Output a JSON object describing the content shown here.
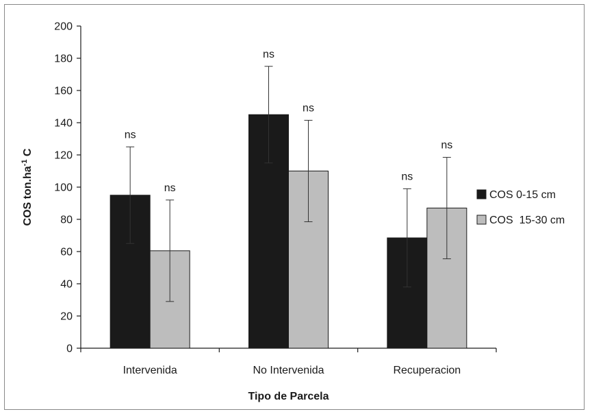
{
  "chart_data": {
    "type": "bar",
    "categories": [
      "Intervenida",
      "No Intervenida",
      "Recuperacion"
    ],
    "series": [
      {
        "name": "COS 0-15 cm",
        "values": [
          95,
          145,
          68.5
        ],
        "error": [
          30,
          30,
          30.5
        ],
        "annotations": [
          "ns",
          "ns",
          "ns"
        ],
        "color": "#1a1a1a"
      },
      {
        "name": "COS  15-30 cm",
        "values": [
          60.5,
          110,
          87
        ],
        "error": [
          31.5,
          31.5,
          31.5
        ],
        "annotations": [
          "ns",
          "ns",
          "ns"
        ],
        "color": "#bdbdbd"
      }
    ],
    "xlabel": "Tipo de Parcela",
    "ylabel": {
      "base": "COS ton.ha",
      "sup": "-1",
      "tail": " C"
    },
    "ylim": [
      0,
      200
    ],
    "yticks": [
      0,
      20,
      40,
      60,
      80,
      100,
      120,
      140,
      160,
      180,
      200
    ],
    "grid": false,
    "legend_position": "right"
  }
}
